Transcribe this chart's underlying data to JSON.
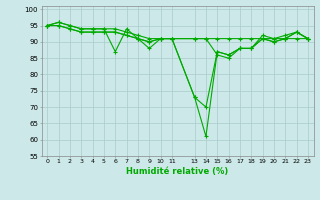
{
  "xlabel": "Humidité relative (%)",
  "background_color": "#cce8e8",
  "grid_color": "#aacccc",
  "line_color": "#00aa00",
  "ylim": [
    55,
    101
  ],
  "xlim": [
    -0.5,
    23.5
  ],
  "yticks": [
    55,
    60,
    65,
    70,
    75,
    80,
    85,
    90,
    95,
    100
  ],
  "xtick_positions": [
    0,
    1,
    2,
    3,
    4,
    5,
    6,
    7,
    8,
    9,
    10,
    11,
    13,
    14,
    15,
    16,
    17,
    18,
    19,
    20,
    21,
    22,
    23
  ],
  "xtick_labels": [
    "0",
    "1",
    "2",
    "3",
    "4",
    "5",
    "6",
    "7",
    "8",
    "9",
    "10",
    "11",
    "13",
    "14",
    "15",
    "16",
    "17",
    "18",
    "19",
    "20",
    "21",
    "22",
    "23"
  ],
  "series": [
    {
      "x": [
        0,
        1,
        2,
        3,
        4,
        5,
        6,
        7,
        8,
        9,
        10,
        11,
        13,
        14,
        15,
        16,
        17,
        18,
        19,
        20,
        21,
        22,
        23
      ],
      "y": [
        95,
        96,
        95,
        94,
        94,
        94,
        87,
        94,
        91,
        88,
        91,
        91,
        73,
        61,
        87,
        86,
        88,
        88,
        91,
        90,
        91,
        93,
        91
      ]
    },
    {
      "x": [
        0,
        1,
        2,
        3,
        4,
        5,
        6,
        7,
        8,
        9,
        10,
        11,
        13,
        14,
        15,
        16,
        17,
        18,
        19,
        20,
        21,
        22,
        23
      ],
      "y": [
        95,
        96,
        95,
        94,
        94,
        94,
        94,
        93,
        92,
        91,
        91,
        91,
        91,
        91,
        91,
        91,
        91,
        91,
        91,
        91,
        91,
        91,
        91
      ]
    },
    {
      "x": [
        0,
        1,
        2,
        3,
        4,
        5,
        6,
        7,
        8,
        9,
        10,
        11,
        13,
        14,
        15,
        16,
        17,
        18,
        19,
        20,
        21,
        22,
        23
      ],
      "y": [
        95,
        95,
        94,
        93,
        93,
        93,
        93,
        92,
        91,
        90,
        91,
        91,
        91,
        91,
        86,
        85,
        88,
        88,
        92,
        91,
        92,
        93,
        91
      ]
    },
    {
      "x": [
        0,
        1,
        2,
        3,
        4,
        5,
        6,
        7,
        8,
        9,
        10,
        11,
        13,
        14,
        15,
        16,
        17,
        18,
        19,
        20,
        21,
        22,
        23
      ],
      "y": [
        95,
        95,
        94,
        93,
        93,
        93,
        93,
        92,
        91,
        90,
        91,
        91,
        73,
        70,
        87,
        86,
        88,
        88,
        91,
        90,
        91,
        93,
        91
      ]
    }
  ]
}
